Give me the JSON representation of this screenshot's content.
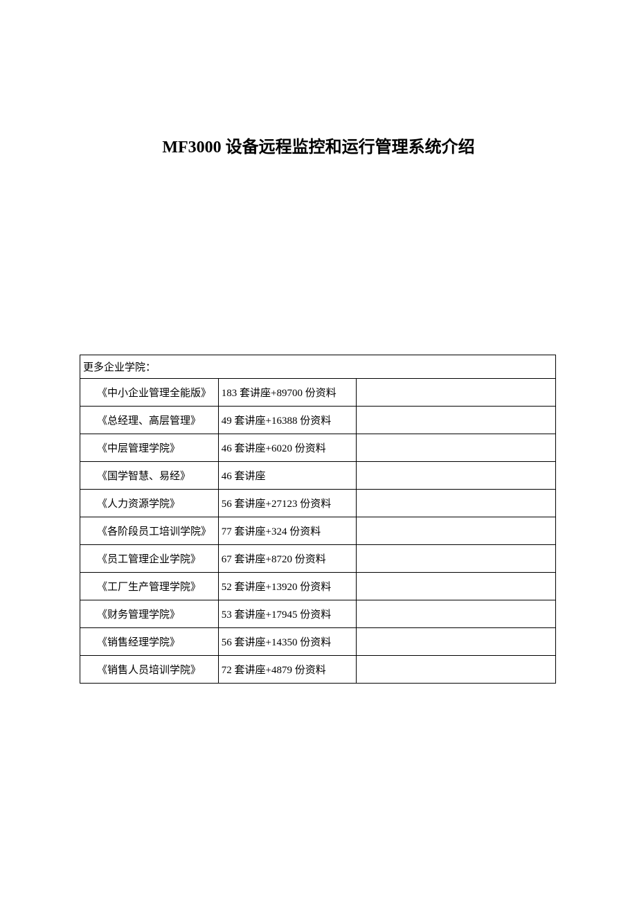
{
  "title": "MF3000 设备远程监控和运行管理系统介绍",
  "table": {
    "header": "更多企业学院：",
    "rows": [
      {
        "name": "《中小企业管理全能版》",
        "content": "183 套讲座+89700 份资料"
      },
      {
        "name": "《总经理、高层管理》",
        "content": "49 套讲座+16388 份资料"
      },
      {
        "name": "《中层管理学院》",
        "content": "46 套讲座+6020 份资料"
      },
      {
        "name": "《国学智慧、易经》",
        "content": "46 套讲座"
      },
      {
        "name": "《人力资源学院》",
        "content": "56 套讲座+27123 份资料"
      },
      {
        "name": "《各阶段员工培训学院》",
        "content": "77 套讲座+324 份资料"
      },
      {
        "name": "《员工管理企业学院》",
        "content": "67 套讲座+8720 份资料"
      },
      {
        "name": "《工厂生产管理学院》",
        "content": "52 套讲座+13920 份资料"
      },
      {
        "name": "《财务管理学院》",
        "content": "53 套讲座+17945 份资料"
      },
      {
        "name": "《销售经理学院》",
        "content": "56 套讲座+14350 份资料"
      },
      {
        "name": "《销售人员培训学院》",
        "content": "72 套讲座+4879 份资料"
      }
    ]
  },
  "colors": {
    "text": "#000000",
    "border": "#000000",
    "background": "#ffffff"
  },
  "fonts": {
    "title_size": 24,
    "body_size": 15,
    "title_weight": "bold"
  }
}
